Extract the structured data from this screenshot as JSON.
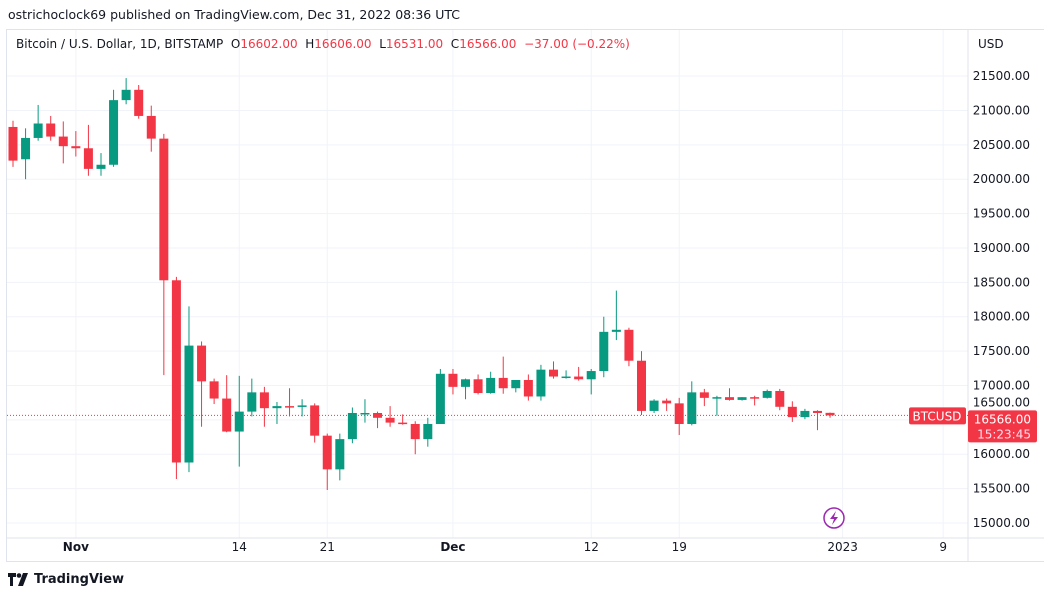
{
  "header": {
    "published_line": "ostrichoclock69 published on TradingView.com, Dec 31, 2022 08:36 UTC"
  },
  "legend": {
    "symbol": "Bitcoin / U.S. Dollar, 1D, BITSTAMP",
    "o_label": "O",
    "o": "16602.00",
    "h_label": "H",
    "h": "16606.00",
    "l_label": "L",
    "l": "16531.00",
    "c_label": "C",
    "c": "16566.00",
    "change": "−37.00 (−0.22%)"
  },
  "price_axis": {
    "currency": "USD"
  },
  "last_price": {
    "ticker": "BTCUSD",
    "price": "16566.00",
    "countdown": "15:23:45"
  },
  "icons": {
    "event": "lightning-icon",
    "logo": "tradingview-logo"
  },
  "footer": {
    "brand": "TradingView"
  },
  "colors": {
    "up": "#089981",
    "down": "#f23645",
    "grid": "#f0f3fa",
    "event": "#9c27b0"
  },
  "chart_data": {
    "type": "candlestick",
    "title": "Bitcoin / U.S. Dollar, 1D, BITSTAMP",
    "ylabel": "USD",
    "ylim": [
      14800,
      21900
    ],
    "grid": true,
    "y_ticks": [
      "15000.00",
      "15500.00",
      "16000.00",
      "16500.00",
      "17000.00",
      "17500.00",
      "18000.00",
      "18500.00",
      "19000.00",
      "19500.00",
      "20000.00",
      "20500.00",
      "21000.00",
      "21500.00"
    ],
    "x_ticks": [
      {
        "label": "Nov",
        "date": "2022-11-01"
      },
      {
        "label": "14",
        "date": "2022-11-14"
      },
      {
        "label": "21",
        "date": "2022-11-21"
      },
      {
        "label": "Dec",
        "date": "2022-12-01"
      },
      {
        "label": "12",
        "date": "2022-12-12"
      },
      {
        "label": "19",
        "date": "2022-12-19"
      },
      {
        "label": "2023",
        "date": "2023-01-01"
      },
      {
        "label": "9",
        "date": "2023-01-09"
      }
    ],
    "start_date": "2022-10-27",
    "candles": [
      [
        20760,
        20850,
        20180,
        20270
      ],
      [
        20290,
        20740,
        20000,
        20600
      ],
      [
        20600,
        21080,
        20560,
        20810
      ],
      [
        20810,
        20920,
        20560,
        20620
      ],
      [
        20620,
        20840,
        20230,
        20480
      ],
      [
        20480,
        20700,
        20330,
        20450
      ],
      [
        20450,
        20790,
        20050,
        20150
      ],
      [
        20150,
        20380,
        20050,
        20210
      ],
      [
        20210,
        21300,
        20180,
        21150
      ],
      [
        21150,
        21470,
        21090,
        21300
      ],
      [
        21300,
        21370,
        20880,
        20920
      ],
      [
        20920,
        21070,
        20400,
        20590
      ],
      [
        20590,
        20660,
        17150,
        18530
      ],
      [
        18530,
        18580,
        15640,
        15880
      ],
      [
        15880,
        18150,
        15740,
        17580
      ],
      [
        17580,
        17640,
        16400,
        17060
      ],
      [
        17060,
        17100,
        16730,
        16810
      ],
      [
        16810,
        17150,
        16320,
        16330
      ],
      [
        16330,
        17140,
        15820,
        16620
      ],
      [
        16620,
        17100,
        16550,
        16900
      ],
      [
        16900,
        16980,
        16400,
        16670
      ],
      [
        16670,
        16760,
        16440,
        16700
      ],
      [
        16700,
        16960,
        16550,
        16690
      ],
      [
        16690,
        16800,
        16550,
        16710
      ],
      [
        16710,
        16740,
        16170,
        16270
      ],
      [
        16270,
        16300,
        15480,
        15780
      ],
      [
        15780,
        16300,
        15620,
        16220
      ],
      [
        16220,
        16680,
        16160,
        16600
      ],
      [
        16600,
        16800,
        16460,
        16600
      ],
      [
        16600,
        16620,
        16380,
        16530
      ],
      [
        16530,
        16700,
        16400,
        16460
      ],
      [
        16460,
        16580,
        16430,
        16440
      ],
      [
        16440,
        16480,
        16000,
        16220
      ],
      [
        16220,
        16530,
        16110,
        16440
      ],
      [
        16440,
        17240,
        16440,
        17170
      ],
      [
        17170,
        17240,
        16870,
        16980
      ],
      [
        16980,
        17100,
        16800,
        17090
      ],
      [
        17090,
        17160,
        16870,
        16890
      ],
      [
        16890,
        17200,
        16880,
        17110
      ],
      [
        17110,
        17420,
        16880,
        16960
      ],
      [
        16960,
        17080,
        16900,
        17080
      ],
      [
        17080,
        17160,
        16780,
        16840
      ],
      [
        16840,
        17300,
        16780,
        17230
      ],
      [
        17230,
        17350,
        17100,
        17130
      ],
      [
        17130,
        17220,
        17100,
        17130
      ],
      [
        17130,
        17270,
        17070,
        17090
      ],
      [
        17090,
        17240,
        16870,
        17210
      ],
      [
        17210,
        18000,
        17120,
        17780
      ],
      [
        17780,
        18380,
        17660,
        17810
      ],
      [
        17810,
        17840,
        17280,
        17360
      ],
      [
        17360,
        17500,
        16570,
        16630
      ],
      [
        16630,
        16800,
        16600,
        16780
      ],
      [
        16780,
        16810,
        16630,
        16740
      ],
      [
        16740,
        16820,
        16280,
        16440
      ],
      [
        16440,
        17060,
        16420,
        16900
      ],
      [
        16900,
        16950,
        16700,
        16820
      ],
      [
        16820,
        16850,
        16560,
        16830
      ],
      [
        16830,
        16960,
        16780,
        16790
      ],
      [
        16790,
        16830,
        16780,
        16830
      ],
      [
        16830,
        16850,
        16710,
        16820
      ],
      [
        16820,
        16940,
        16810,
        16920
      ],
      [
        16920,
        16950,
        16640,
        16690
      ],
      [
        16690,
        16770,
        16470,
        16540
      ],
      [
        16540,
        16660,
        16510,
        16630
      ],
      [
        16630,
        16640,
        16350,
        16600
      ],
      [
        16602,
        16606,
        16531,
        16566
      ]
    ],
    "candle_fields": [
      "open",
      "high",
      "low",
      "close"
    ],
    "last_price_line": 16566
  }
}
